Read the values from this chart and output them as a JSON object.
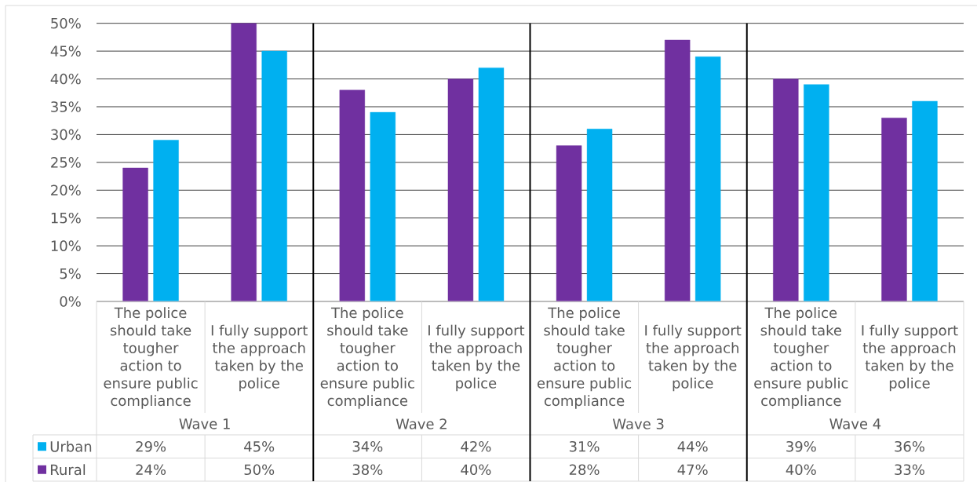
{
  "chart_data": {
    "type": "bar",
    "categories": [
      "The police should take tougher action to ensure public compliance",
      "I fully support the approach taken by the police",
      "The police should take tougher action to ensure public compliance",
      "I fully support the approach taken by the police",
      "The police should take tougher action to ensure public compliance",
      "I fully support the approach taken by the police",
      "The police should take tougher action to ensure public compliance",
      "I fully support the approach taken by the police"
    ],
    "series": [
      {
        "name": "Rural",
        "color": "#7030a0",
        "values": [
          24,
          50,
          38,
          40,
          28,
          47,
          40,
          33
        ],
        "value_labels": [
          "24%",
          "50%",
          "38%",
          "40%",
          "28%",
          "47%",
          "40%",
          "33%"
        ]
      },
      {
        "name": "Urban",
        "color": "#00b0f0",
        "values": [
          29,
          45,
          34,
          42,
          31,
          44,
          39,
          36
        ],
        "value_labels": [
          "29%",
          "45%",
          "34%",
          "42%",
          "31%",
          "44%",
          "39%",
          "36%"
        ]
      }
    ],
    "annotations": [
      "Wave 1",
      "Wave 2",
      "Wave 3",
      "Wave 4"
    ],
    "ylim": [
      0,
      50
    ],
    "yticks": [
      {
        "value": 0,
        "label": "0%"
      },
      {
        "value": 5,
        "label": "5%"
      },
      {
        "value": 10,
        "label": "10%"
      },
      {
        "value": 15,
        "label": "15%"
      },
      {
        "value": 20,
        "label": "20%"
      },
      {
        "value": 25,
        "label": "25%"
      },
      {
        "value": 30,
        "label": "30%"
      },
      {
        "value": 35,
        "label": "35%"
      },
      {
        "value": 40,
        "label": "40%"
      },
      {
        "value": 45,
        "label": "45%"
      },
      {
        "value": 50,
        "label": "50%"
      }
    ],
    "grid": "y",
    "legend": "bottom"
  }
}
